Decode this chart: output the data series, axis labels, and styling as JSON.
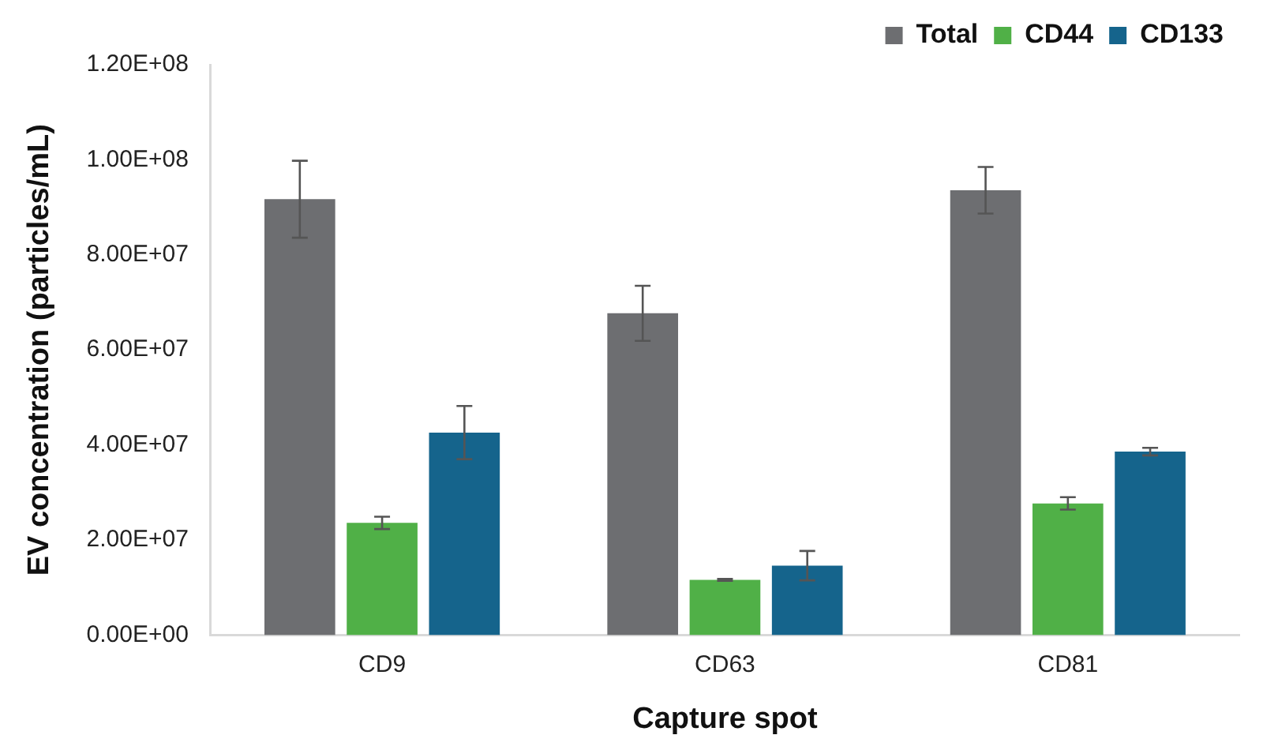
{
  "chart_data": {
    "type": "bar",
    "xlabel": "Capture spot",
    "ylabel": "EV concentration (particles/mL)",
    "categories": [
      "CD9",
      "CD63",
      "CD81"
    ],
    "series": [
      {
        "name": "Total",
        "color": "#6d6e71",
        "values": [
          91700000,
          67700000,
          93600000
        ],
        "errors": [
          8100000,
          5800000,
          4900000
        ]
      },
      {
        "name": "CD44",
        "color": "#50b047",
        "values": [
          23600000,
          11600000,
          27700000
        ],
        "errors": [
          1300000,
          200000,
          1300000
        ]
      },
      {
        "name": "CD133",
        "color": "#15648c",
        "values": [
          42600000,
          14600000,
          38600000
        ],
        "errors": [
          5600000,
          3100000,
          800000
        ]
      }
    ],
    "ylim": [
      0,
      120000000
    ],
    "yticks": [
      {
        "value": 0,
        "label": "0.00E+00"
      },
      {
        "value": 20000000,
        "label": "2.00E+07"
      },
      {
        "value": 40000000,
        "label": "4.00E+07"
      },
      {
        "value": 60000000,
        "label": "6.00E+07"
      },
      {
        "value": 80000000,
        "label": "8.00E+07"
      },
      {
        "value": 100000000,
        "label": "1.00E+08"
      },
      {
        "value": 120000000,
        "label": "1.20E+08"
      }
    ],
    "grid": false,
    "legend": "top right"
  }
}
